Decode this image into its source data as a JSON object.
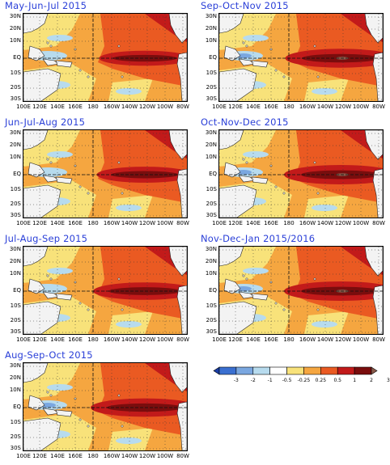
{
  "panels": [
    {
      "title": "May-Jun-Jul 2015",
      "strength": 0.55
    },
    {
      "title": "Sep-Oct-Nov 2015",
      "strength": 0.95
    },
    {
      "title": "Jun-Jul-Aug 2015",
      "strength": 0.65
    },
    {
      "title": "Oct-Nov-Dec 2015",
      "strength": 1.0
    },
    {
      "title": "Jul-Aug-Sep 2015",
      "strength": 0.8
    },
    {
      "title": "Nov-Dec-Jan 2015/2016",
      "strength": 1.0
    },
    {
      "title": "Aug-Sep-Oct 2015",
      "strength": 0.9
    }
  ],
  "lat_labels": [
    "30N",
    "20N",
    "10N",
    "EQ",
    "10S",
    "20S",
    "30S"
  ],
  "lon_labels": [
    "100E",
    "120E",
    "140E",
    "160E",
    "180",
    "160W",
    "140W",
    "120W",
    "100W",
    "80W"
  ],
  "colorbar": {
    "labels": [
      "-3",
      "-2",
      "-1",
      "-0.5",
      "-0.25",
      "0.25",
      "0.5",
      "1",
      "2",
      "3"
    ],
    "colors": [
      "#1a3ea8",
      "#3a6fd0",
      "#7aa7e0",
      "#b7dbee",
      "#ffffff",
      "#f8e27a",
      "#f5a640",
      "#ea5a22",
      "#c21a1a",
      "#7a0d0d",
      "#8a5a4a"
    ]
  },
  "palette": {
    "title": "#2a3fd8",
    "land": "#f3f3f3",
    "weak_warm": "#f8e27a",
    "warm": "#f5a640",
    "hot": "#ea5a22",
    "very_hot": "#c21a1a",
    "extreme": "#7a0d0d",
    "cool": "#b7dbee",
    "cold": "#7aa7e0"
  }
}
